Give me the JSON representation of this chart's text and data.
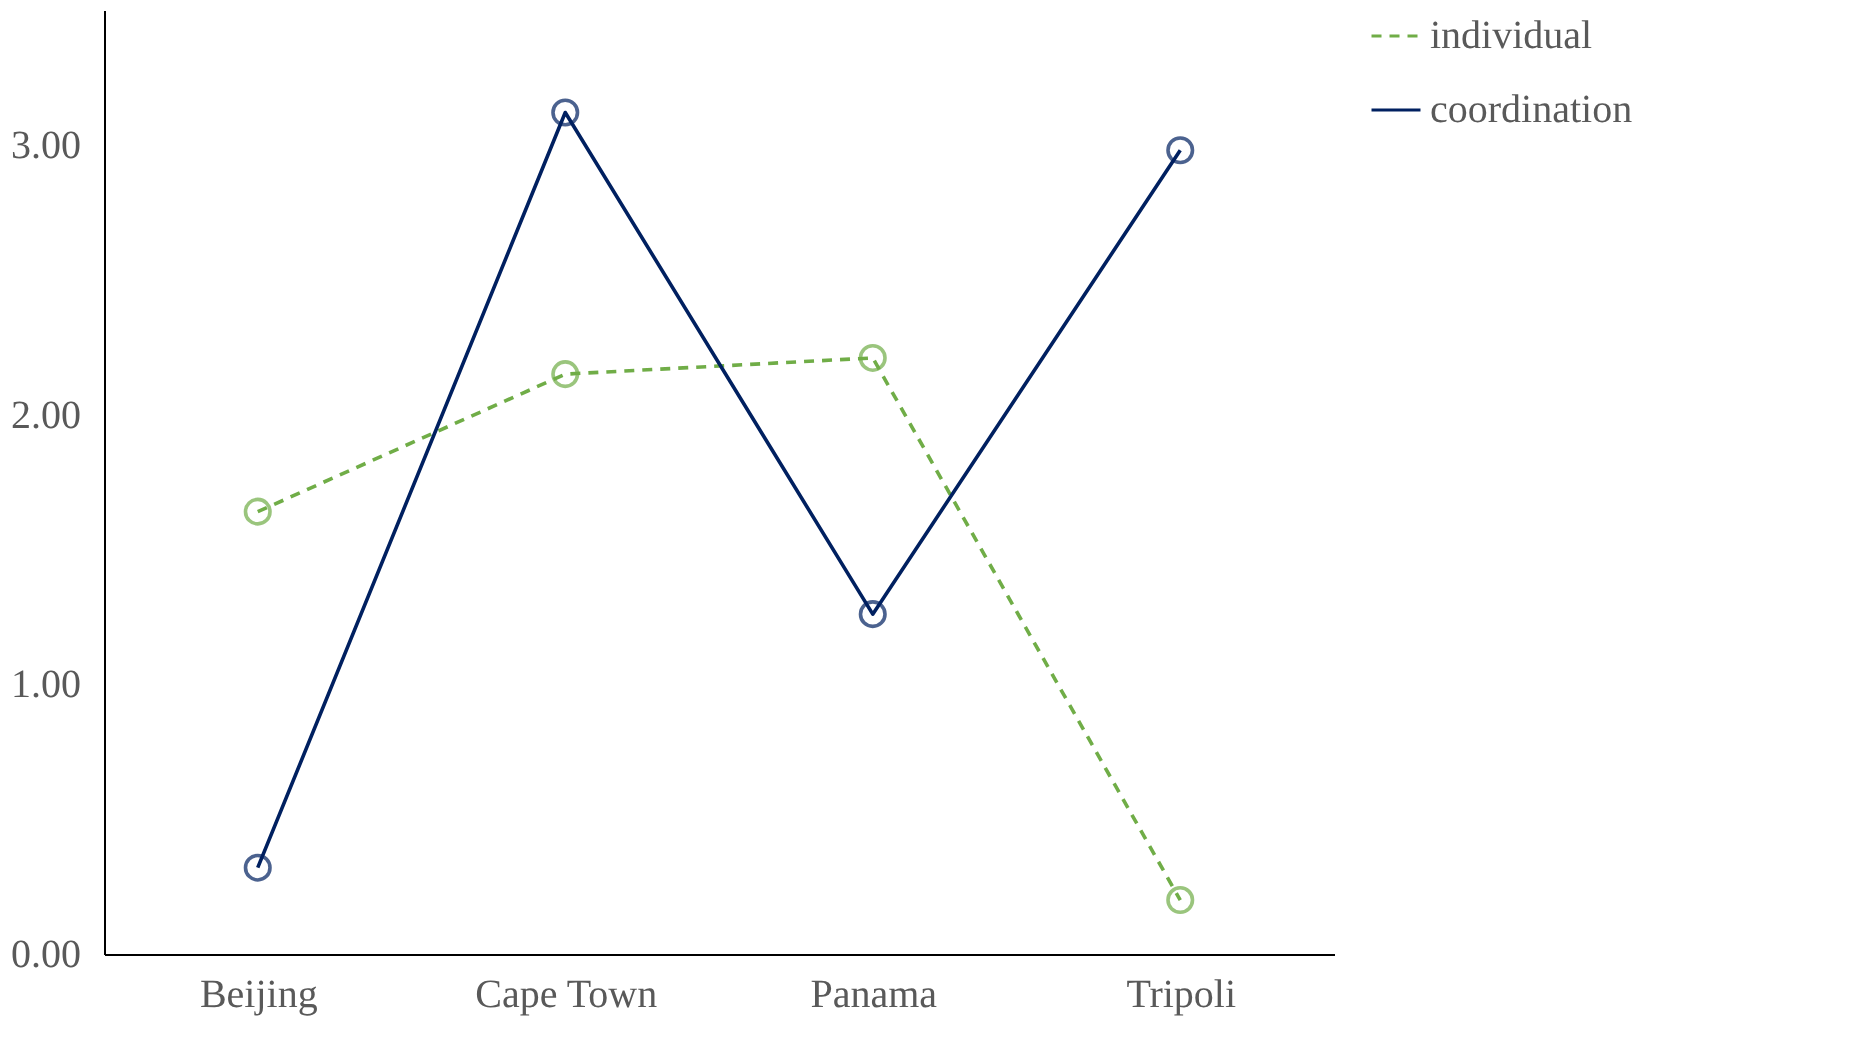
{
  "chart_data": {
    "type": "line",
    "categories": [
      "Beijing",
      "Cape Town",
      "Panama",
      "Tripoli"
    ],
    "series": [
      {
        "name": "individual",
        "color": "#70ad47",
        "values": [
          1.64,
          2.15,
          2.21,
          0.2
        ],
        "line_style": "dashed"
      },
      {
        "name": "coordination",
        "color": "#002060",
        "values": [
          0.32,
          3.12,
          1.26,
          2.98
        ],
        "line_style": "solid"
      }
    ],
    "ylim": [
      0,
      3.5
    ],
    "yticks": [
      {
        "value": 0,
        "label": "0.00"
      },
      {
        "value": 1,
        "label": "1.00"
      },
      {
        "value": 2,
        "label": "2.00"
      },
      {
        "value": 3,
        "label": "3.00"
      }
    ],
    "grid": false,
    "legend": "right",
    "marker": "circle"
  }
}
